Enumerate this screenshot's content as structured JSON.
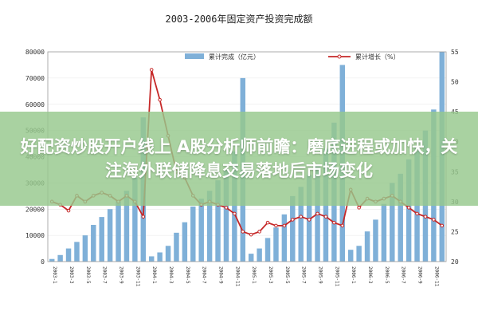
{
  "chart_data": {
    "type": "bar+line",
    "title": "2003-2006年固定资产投资完成额",
    "categories": [
      "2003-01",
      "2003-02",
      "2003-03",
      "2003-04",
      "2003-05",
      "2003-06",
      "2003-07",
      "2003-08",
      "2003-09",
      "2003-10",
      "2003-11",
      "2003-12",
      "2004-01",
      "2004-02",
      "2004-03",
      "2004-04",
      "2004-05",
      "2004-06",
      "2004-07",
      "2004-08",
      "2004-09",
      "2004-10",
      "2004-11",
      "2004-12",
      "2005-01",
      "2005-02",
      "2005-03",
      "2005-04",
      "2005-05",
      "2005-06",
      "2005-07",
      "2005-08",
      "2005-09",
      "2005-10",
      "2005-11",
      "2005-12",
      "2006-01",
      "2006-02",
      "2006-03",
      "2006-04",
      "2006-05",
      "2006-06",
      "2006-07",
      "2006-08",
      "2006-09",
      "2006-10",
      "2006-11",
      "2006-12"
    ],
    "xtick_labels": [
      "2003-1",
      "2003-3",
      "2003-5",
      "2003-7",
      "2003-9",
      "2003-11",
      "2004-1",
      "2004-3",
      "2004-5",
      "2004-7",
      "2004-9",
      "2004-11",
      "2005-1",
      "2005-3",
      "2005-5",
      "2005-7",
      "2005-9",
      "2005-11",
      "2006-1",
      "2006-3",
      "2006-5",
      "2006-7",
      "2006-9",
      "2006-11"
    ],
    "series": [
      {
        "name": "累计完成（亿元）",
        "kind": "bar",
        "axis": "left",
        "color": "#7fb0d8",
        "values": [
          1000,
          2500,
          5000,
          7500,
          10000,
          14000,
          17000,
          20000,
          23000,
          27000,
          32000,
          55000,
          2000,
          3500,
          6000,
          11000,
          15000,
          21000,
          24000,
          27000,
          31000,
          35000,
          42000,
          70000,
          3000,
          5000,
          9000,
          13000,
          18000,
          25000,
          28500,
          33000,
          37000,
          43000,
          53000,
          75000,
          4500,
          6000,
          11500,
          16000,
          22000,
          30000,
          33500,
          39000,
          44000,
          50000,
          58000,
          80000
        ]
      },
      {
        "name": "累计增长（%）",
        "kind": "line",
        "axis": "right",
        "color": "#c62828",
        "values": [
          30,
          29.5,
          28.5,
          31,
          30,
          31,
          31.5,
          31,
          30,
          31,
          30,
          27.5,
          52,
          47,
          41,
          35,
          34,
          31,
          29.5,
          30,
          29.5,
          29,
          28,
          25,
          24.5,
          25,
          26.5,
          26,
          26,
          27,
          27.5,
          27,
          28,
          27.5,
          26.5,
          26,
          32,
          29,
          30.5,
          30,
          30.5,
          31,
          30,
          29,
          28,
          27.5,
          27,
          26
        ]
      }
    ],
    "y_left": {
      "ticks": [
        "0",
        "10000",
        "20000",
        "30000",
        "40000",
        "50000",
        "60000",
        "70000",
        "80000"
      ],
      "range": [
        0,
        80000
      ]
    },
    "y_right": {
      "ticks": [
        "20",
        "25",
        "30",
        "35",
        "40",
        "45",
        "50",
        "55"
      ],
      "range": [
        20,
        55
      ]
    },
    "legend_position": "top"
  },
  "overlay": {
    "text": "好配资炒股开户线上 A股分析师前瞻：磨底进程或加快，关注海外联储降息交易落地后市场变化"
  }
}
